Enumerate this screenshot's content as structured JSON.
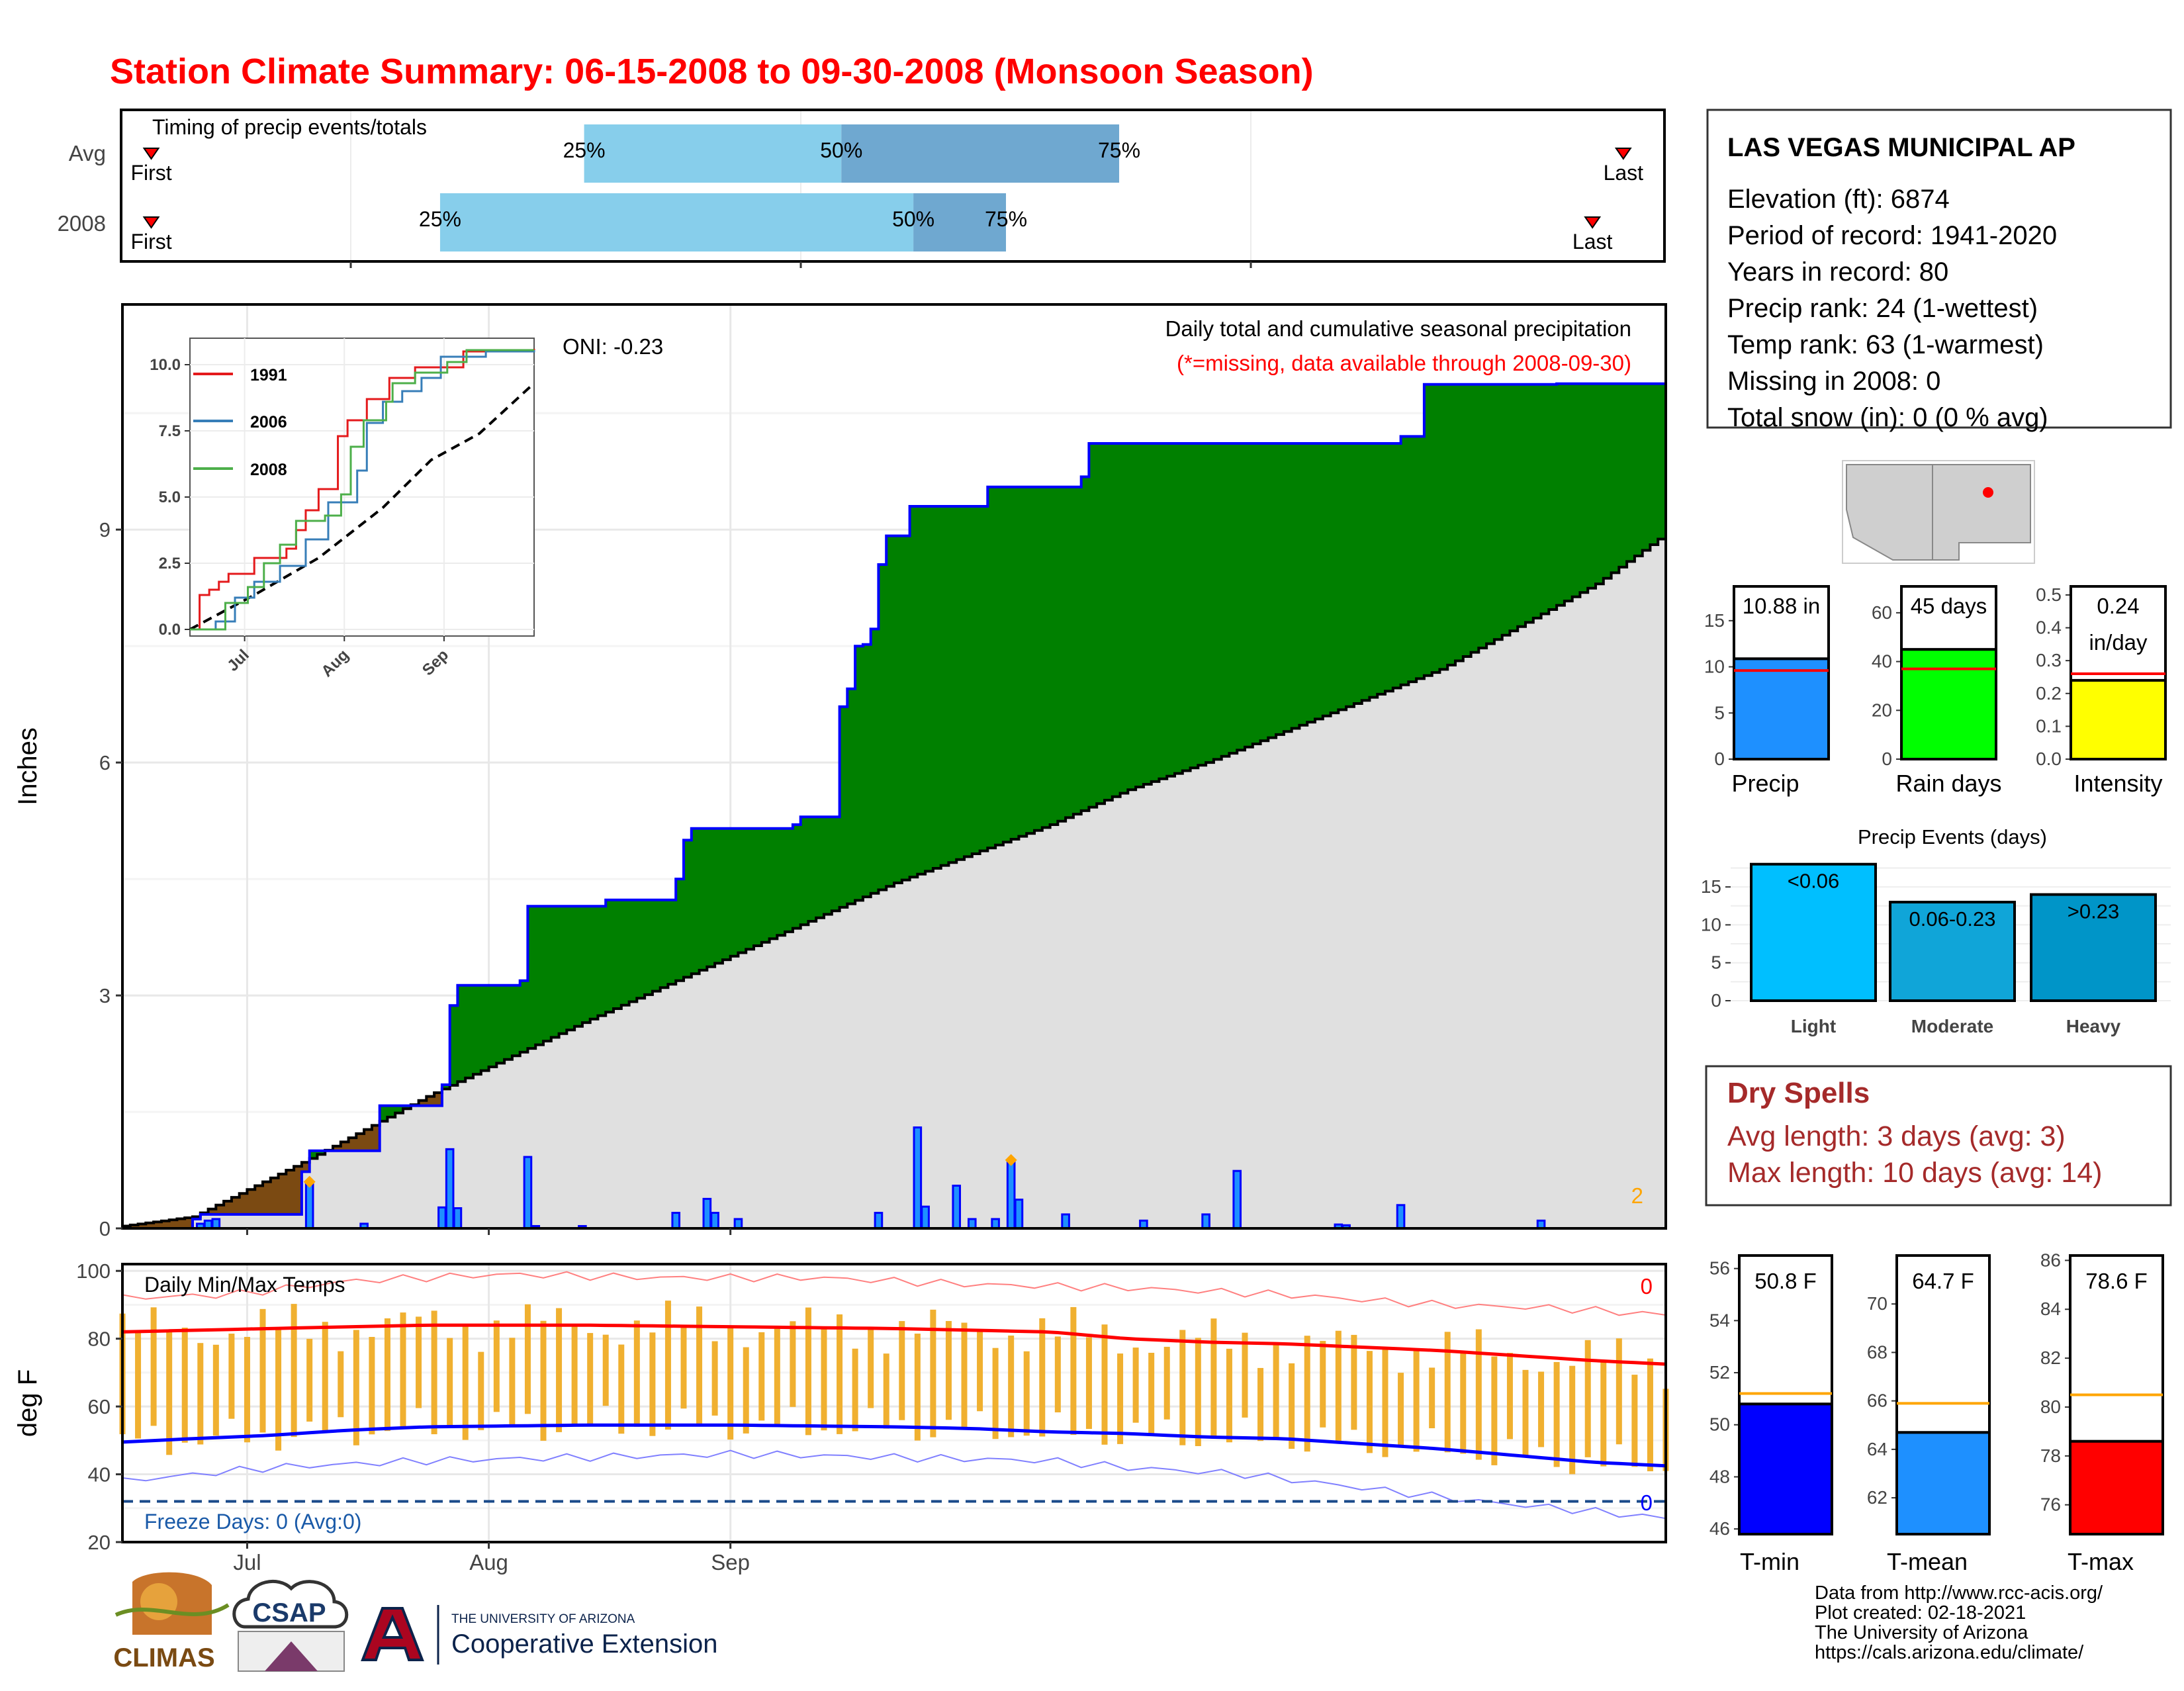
{
  "title": "Station Climate Summary: 06-15-2008 to 09-30-2008 (Monsoon Season)",
  "colors": {
    "title_red": "#ff0000",
    "cum_green": "#008000",
    "avg_gray": "#e0e0e0",
    "deficit_brown": "#7b4a12",
    "bar_blue": "#1e90ff",
    "outline_blue": "#0000ff",
    "temp_bar": "#f0b030",
    "tmax_line": "#ff0000",
    "tmin_line": "#0000ff",
    "dry_spell": "#a52a2a",
    "light_blue": "#87ceeb",
    "mid_blue": "#6fa8d0"
  },
  "timing": {
    "title": "Timing of precip events/totals",
    "rows": [
      {
        "label": "Avg",
        "first": "First",
        "last": "Last",
        "p25": "25%",
        "p50": "50%",
        "p75": "75%",
        "first_day": 1,
        "p25_day": 45,
        "p50_day": 70,
        "p75_day": 97,
        "last_day": 146
      },
      {
        "label": "2008",
        "first": "First",
        "last": "Last",
        "p25": "25%",
        "p50": "50%",
        "p75": "75%",
        "first_day": 1,
        "p25_day": 31,
        "p50_day": 77,
        "p75_day": 86,
        "last_day": 143
      }
    ]
  },
  "station": {
    "name": "LAS VEGAS MUNICIPAL AP",
    "lines": [
      "Elevation (ft): 6874",
      "Period of record: 1941-2020",
      "Years in record: 80",
      "Precip rank: 24 (1-wettest)",
      "Temp rank: 63 (1-warmest)",
      "Missing in 2008: 0",
      "Total snow (in): 0 (0 % avg)"
    ]
  },
  "main_chart": {
    "type": "area",
    "ylabel": "Inches",
    "ylim": [
      0,
      11.9
    ],
    "yticks": [
      "0",
      "3",
      "6",
      "9"
    ],
    "xticks": [
      "Jul",
      "Aug",
      "Sep"
    ],
    "legend_title": "Daily total and cumulative seasonal precipitation",
    "legend_sub": "(*=missing, data available through 2008-09-30)",
    "oni": "ONI: -0.23",
    "corner_label": "2",
    "cumulative_steps": [
      [
        1,
        0
      ],
      [
        10,
        0.12
      ],
      [
        11,
        0.18
      ],
      [
        12,
        0.18
      ],
      [
        13,
        0.18
      ],
      [
        24,
        0.73
      ],
      [
        25,
        1.0
      ],
      [
        33,
        1.0
      ],
      [
        34,
        1.58
      ],
      [
        41,
        1.58
      ],
      [
        42,
        1.85
      ],
      [
        43,
        2.87
      ],
      [
        44,
        3.13
      ],
      [
        51,
        3.13
      ],
      [
        52,
        3.19
      ],
      [
        53,
        4.15
      ],
      [
        63,
        4.23
      ],
      [
        72,
        4.5
      ],
      [
        73,
        5.0
      ],
      [
        74,
        5.15
      ],
      [
        87,
        5.2
      ],
      [
        88,
        5.3
      ],
      [
        93,
        6.72
      ],
      [
        94,
        6.95
      ],
      [
        95,
        7.5
      ],
      [
        96,
        7.52
      ],
      [
        97,
        7.72
      ],
      [
        98,
        8.55
      ],
      [
        99,
        8.92
      ],
      [
        102,
        9.3
      ],
      [
        103,
        9.3
      ],
      [
        112,
        9.55
      ],
      [
        113,
        9.55
      ],
      [
        124,
        9.68
      ],
      [
        125,
        10.11
      ],
      [
        126,
        10.11
      ],
      [
        165,
        10.2
      ],
      [
        168,
        10.87
      ],
      [
        185,
        10.88
      ],
      [
        199,
        10.88
      ]
    ],
    "avg_cumulative": [
      [
        1,
        0.03
      ],
      [
        10,
        0.15
      ],
      [
        25,
        0.9
      ],
      [
        40,
        1.7
      ],
      [
        60,
        2.65
      ],
      [
        80,
        3.55
      ],
      [
        100,
        4.45
      ],
      [
        120,
        5.2
      ],
      [
        130,
        5.65
      ],
      [
        140,
        6.0
      ],
      [
        150,
        6.4
      ],
      [
        160,
        6.8
      ],
      [
        170,
        7.2
      ],
      [
        180,
        7.75
      ],
      [
        190,
        8.3
      ],
      [
        199,
        8.95
      ]
    ],
    "daily_bars": [
      [
        11,
        0.06
      ],
      [
        12,
        0.1
      ],
      [
        13,
        0.12
      ],
      [
        25,
        0.58
      ],
      [
        32,
        0.06
      ],
      [
        42,
        0.27
      ],
      [
        43,
        1.02
      ],
      [
        44,
        0.26
      ],
      [
        53,
        0.92
      ],
      [
        54,
        0.03
      ],
      [
        60,
        0.03
      ],
      [
        72,
        0.2
      ],
      [
        76,
        0.38
      ],
      [
        77,
        0.2
      ],
      [
        80,
        0.12
      ],
      [
        98,
        0.2
      ],
      [
        103,
        1.3
      ],
      [
        104,
        0.28
      ],
      [
        108,
        0.55
      ],
      [
        110,
        0.12
      ],
      [
        113,
        0.12
      ],
      [
        115,
        0.85
      ],
      [
        116,
        0.37
      ],
      [
        122,
        0.18
      ],
      [
        132,
        0.1
      ],
      [
        140,
        0.18
      ],
      [
        144,
        0.74
      ],
      [
        157,
        0.05
      ],
      [
        158,
        0.04
      ],
      [
        165,
        0.3
      ],
      [
        183,
        0.1
      ]
    ],
    "markers": [
      [
        25,
        0.6
      ],
      [
        115,
        0.88
      ]
    ]
  },
  "inset_chart": {
    "type": "line",
    "ylim": [
      0,
      10.5
    ],
    "yticks": [
      "0.0",
      "2.5",
      "5.0",
      "7.5",
      "10.0"
    ],
    "xticks": [
      "Jul",
      "Aug",
      "Sep"
    ],
    "series": [
      {
        "name": "1991",
        "color": "#e41a1c",
        "steps": [
          [
            0,
            0
          ],
          [
            3,
            1.3
          ],
          [
            6,
            1.5
          ],
          [
            9,
            1.8
          ],
          [
            12,
            2.1
          ],
          [
            20,
            2.7
          ],
          [
            30,
            3.05
          ],
          [
            33,
            3.75
          ],
          [
            36,
            4.5
          ],
          [
            40,
            5.3
          ],
          [
            46,
            7.3
          ],
          [
            49,
            7.9
          ],
          [
            55,
            8.7
          ],
          [
            62,
            9.5
          ],
          [
            70,
            9.9
          ],
          [
            85,
            10.5
          ],
          [
            107,
            10.6
          ]
        ]
      },
      {
        "name": "2006",
        "color": "#377eb8",
        "steps": [
          [
            0,
            0
          ],
          [
            8,
            0.3
          ],
          [
            14,
            1.2
          ],
          [
            20,
            1.8
          ],
          [
            28,
            2.4
          ],
          [
            36,
            3.4
          ],
          [
            43,
            4.8
          ],
          [
            52,
            6.0
          ],
          [
            55,
            7.8
          ],
          [
            60,
            8.6
          ],
          [
            66,
            9.0
          ],
          [
            72,
            9.5
          ],
          [
            78,
            10.3
          ],
          [
            92,
            10.5
          ],
          [
            107,
            10.55
          ]
        ]
      },
      {
        "name": "2008",
        "color": "#4daf4a",
        "steps": [
          [
            0,
            0
          ],
          [
            11,
            1.0
          ],
          [
            18,
            1.6
          ],
          [
            23,
            2.5
          ],
          [
            28,
            3.2
          ],
          [
            33,
            4.1
          ],
          [
            42,
            4.3
          ],
          [
            47,
            5.1
          ],
          [
            50,
            6.9
          ],
          [
            54,
            7.9
          ],
          [
            61,
            8.6
          ],
          [
            63,
            9.3
          ],
          [
            70,
            9.7
          ],
          [
            80,
            10.1
          ],
          [
            86,
            10.55
          ],
          [
            107,
            10.55
          ]
        ]
      }
    ],
    "average_steps": [
      [
        0,
        0
      ],
      [
        20,
        1.3
      ],
      [
        40,
        2.7
      ],
      [
        60,
        4.6
      ],
      [
        75,
        6.4
      ],
      [
        90,
        7.4
      ],
      [
        107,
        9.3
      ]
    ]
  },
  "summary_bars": [
    {
      "label": "Precip",
      "value_text": "10.88 in",
      "value": 10.88,
      "avg": 9.6,
      "ylim": [
        0,
        18.5
      ],
      "yticks": [
        0,
        5,
        10,
        15
      ],
      "color": "#1e90ff"
    },
    {
      "label": "Rain days",
      "value_text": "45 days",
      "value": 45,
      "avg": 37,
      "ylim": [
        0,
        70
      ],
      "yticks": [
        0,
        20,
        40,
        60
      ],
      "color": "#00ff00"
    },
    {
      "label": "Intensity",
      "value_text": "0.24",
      "value_text2": "in/day",
      "value": 0.24,
      "avg": 0.26,
      "ylim": [
        0,
        0.52
      ],
      "yticks": [
        0.0,
        0.1,
        0.2,
        0.3,
        0.4,
        0.5
      ],
      "color": "#ffff00"
    }
  ],
  "precip_events": {
    "title": "Precip Events (days)",
    "type": "bar",
    "yticks": [
      0,
      5,
      10,
      15
    ],
    "ylim": [
      0,
      18.5
    ],
    "categories": [
      "Light",
      "Moderate",
      "Heavy"
    ],
    "labels": [
      "<0.06",
      "0.06-0.23",
      ">0.23"
    ],
    "values": [
      18,
      13,
      14
    ],
    "colors": [
      "#00bfff",
      "#10a5d8",
      "#0095c8"
    ]
  },
  "dry_spells": {
    "title": "Dry Spells",
    "avg_length": "Avg length: 3 days (avg: 3)",
    "max_length": "Max length: 10 days (avg: 14)"
  },
  "temp_chart": {
    "type": "bar",
    "title": "Daily Min/Max Temps",
    "ylabel": "deg F",
    "ylim": [
      20,
      102
    ],
    "yticks": [
      "20",
      "40",
      "60",
      "80",
      "100"
    ],
    "freeze": "Freeze Days: 0 (Avg:0)",
    "count_hot": "0",
    "count_cold": "0",
    "freeze_line": 32,
    "avg_max_line": [
      [
        1,
        82
      ],
      [
        20,
        83
      ],
      [
        40,
        84
      ],
      [
        60,
        84
      ],
      [
        80,
        83.5
      ],
      [
        100,
        83
      ],
      [
        120,
        82
      ],
      [
        130,
        80
      ],
      [
        140,
        79
      ],
      [
        150,
        78.5
      ],
      [
        160,
        77.5
      ],
      [
        170,
        76.5
      ],
      [
        180,
        75
      ],
      [
        190,
        73.5
      ],
      [
        199,
        72.5
      ]
    ],
    "avg_min_line": [
      [
        1,
        49.5
      ],
      [
        10,
        50.5
      ],
      [
        20,
        51.5
      ],
      [
        30,
        53
      ],
      [
        40,
        54
      ],
      [
        60,
        54.5
      ],
      [
        80,
        54.5
      ],
      [
        100,
        54
      ],
      [
        110,
        53.5
      ],
      [
        120,
        52.5
      ],
      [
        130,
        52
      ],
      [
        140,
        51
      ],
      [
        150,
        50.5
      ],
      [
        160,
        49
      ],
      [
        170,
        47.5
      ],
      [
        180,
        45.5
      ],
      [
        190,
        43.5
      ],
      [
        199,
        42.5
      ]
    ],
    "record_max_line": [
      [
        1,
        92
      ],
      [
        15,
        93
      ],
      [
        30,
        97
      ],
      [
        50,
        99
      ],
      [
        70,
        98
      ],
      [
        90,
        98
      ],
      [
        110,
        96
      ],
      [
        130,
        95
      ],
      [
        150,
        93
      ],
      [
        170,
        90
      ],
      [
        185,
        89
      ],
      [
        199,
        87
      ]
    ],
    "record_min_line": [
      [
        1,
        38
      ],
      [
        20,
        42
      ],
      [
        40,
        44
      ],
      [
        60,
        45
      ],
      [
        80,
        46
      ],
      [
        100,
        45
      ],
      [
        120,
        44
      ],
      [
        130,
        42
      ],
      [
        145,
        40
      ],
      [
        160,
        36
      ],
      [
        175,
        32
      ],
      [
        190,
        29
      ],
      [
        199,
        27
      ]
    ]
  },
  "temp_summary": [
    {
      "label": "T-min",
      "value_text": "50.8 F",
      "value": 50.8,
      "avg": 51.2,
      "ylim": [
        45.8,
        56.5
      ],
      "yticks": [
        46,
        48,
        50,
        52,
        54,
        56
      ],
      "color": "#0000ff"
    },
    {
      "label": "T-mean",
      "value_text": "64.7 F",
      "value": 64.7,
      "avg": 65.9,
      "ylim": [
        60.5,
        72
      ],
      "yticks": [
        62,
        64,
        66,
        68,
        70
      ],
      "color": "#1e90ff"
    },
    {
      "label": "T-max",
      "value_text": "78.6 F",
      "value": 78.6,
      "avg": 80.5,
      "ylim": [
        74.8,
        86.2
      ],
      "yticks": [
        76,
        78,
        80,
        82,
        84,
        86
      ],
      "color": "#ff0000"
    }
  ],
  "footer": {
    "climas": "CLIMAS",
    "csap": "CSAP",
    "ua_small": "THE UNIVERSITY OF ARIZONA",
    "ua_big": "Cooperative Extension",
    "credits": [
      "Data from http://www.rcc-acis.org/",
      "Plot created: 02-18-2021",
      "The University of Arizona",
      "https://cals.arizona.edu/climate/"
    ]
  }
}
